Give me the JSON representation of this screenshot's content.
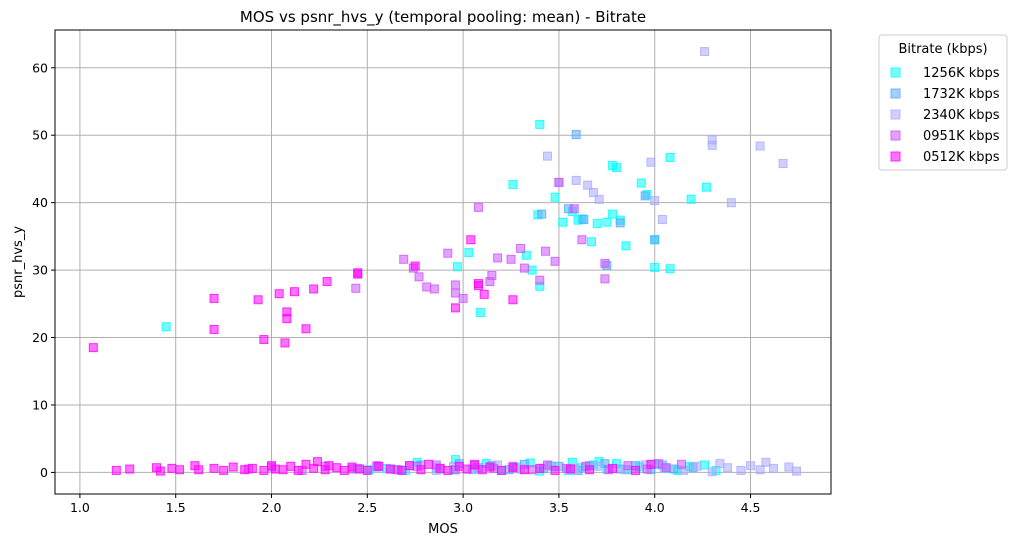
{
  "chart_data": {
    "type": "scatter",
    "title": "MOS vs psnr_hvs_y (temporal pooling: mean) - Bitrate",
    "xlabel": "MOS",
    "ylabel": "psnr_hvs_y",
    "xlim": [
      0.87,
      4.92
    ],
    "ylim": [
      -3.2,
      65.6
    ],
    "xticks": [
      1.0,
      1.5,
      2.0,
      2.5,
      3.0,
      3.5,
      4.0,
      4.5
    ],
    "xtick_labels": [
      "1.0",
      "1.5",
      "2.0",
      "2.5",
      "3.0",
      "3.5",
      "4.0",
      "4.5"
    ],
    "yticks": [
      0,
      10,
      20,
      30,
      40,
      50,
      60
    ],
    "ytick_labels": [
      "0",
      "10",
      "20",
      "30",
      "40",
      "50",
      "60"
    ],
    "grid": true,
    "marker": "square",
    "legend": {
      "title": "Bitrate (kbps)",
      "placement": "outside-top-right"
    },
    "series": [
      {
        "name": "1256K kbps",
        "color": "#00ffff",
        "points": [
          [
            1.45,
            21.6
          ],
          [
            2.97,
            30.5
          ],
          [
            3.03,
            32.6
          ],
          [
            3.09,
            23.7
          ],
          [
            3.26,
            42.7
          ],
          [
            3.33,
            32.2
          ],
          [
            3.36,
            30.0
          ],
          [
            3.39,
            38.2
          ],
          [
            3.4,
            27.6
          ],
          [
            3.4,
            51.6
          ],
          [
            3.48,
            40.8
          ],
          [
            3.52,
            37.1
          ],
          [
            3.57,
            38.7
          ],
          [
            3.6,
            37.4
          ],
          [
            3.62,
            37.6
          ],
          [
            3.67,
            34.2
          ],
          [
            3.7,
            36.9
          ],
          [
            3.75,
            37.1
          ],
          [
            3.78,
            45.5
          ],
          [
            3.78,
            38.3
          ],
          [
            3.8,
            45.2
          ],
          [
            3.82,
            37.4
          ],
          [
            3.85,
            33.6
          ],
          [
            3.93,
            42.9
          ],
          [
            3.96,
            41.2
          ],
          [
            4.0,
            30.4
          ],
          [
            4.0,
            34.5
          ],
          [
            4.08,
            30.2
          ],
          [
            4.08,
            46.7
          ],
          [
            4.19,
            40.5
          ],
          [
            4.27,
            42.3
          ],
          [
            2.51,
            0.4
          ],
          [
            2.6,
            0.6
          ],
          [
            2.7,
            0.3
          ],
          [
            2.76,
            1.5
          ],
          [
            2.86,
            0.7
          ],
          [
            2.95,
            0.4
          ],
          [
            2.96,
            1.9
          ],
          [
            3.05,
            0.5
          ],
          [
            3.12,
            1.3
          ],
          [
            3.2,
            0.3
          ],
          [
            3.28,
            0.8
          ],
          [
            3.35,
            1.4
          ],
          [
            3.4,
            0.2
          ],
          [
            3.46,
            0.9
          ],
          [
            3.55,
            0.3
          ],
          [
            3.57,
            1.5
          ],
          [
            3.62,
            0.7
          ],
          [
            3.68,
            1.1
          ],
          [
            3.71,
            1.6
          ],
          [
            3.75,
            0.5
          ],
          [
            3.8,
            1.3
          ],
          [
            3.86,
            0.4
          ],
          [
            3.92,
            0.8
          ],
          [
            4.0,
            1.2
          ],
          [
            4.06,
            0.6
          ],
          [
            4.12,
            0.3
          ],
          [
            4.18,
            0.9
          ],
          [
            4.26,
            1.1
          ],
          [
            4.32,
            0.3
          ]
        ]
      },
      {
        "name": "1732K kbps",
        "color": "#55aaff",
        "points": [
          [
            3.41,
            38.3
          ],
          [
            3.59,
            50.1
          ],
          [
            3.63,
            37.5
          ],
          [
            3.75,
            30.7
          ],
          [
            3.82,
            37.0
          ],
          [
            4.0,
            34.5
          ],
          [
            3.55,
            39.1
          ],
          [
            3.95,
            41.0
          ],
          [
            2.45,
            0.6
          ],
          [
            2.55,
            0.8
          ],
          [
            2.65,
            0.4
          ],
          [
            2.78,
            1.1
          ],
          [
            2.88,
            0.5
          ],
          [
            2.98,
            1.3
          ],
          [
            3.08,
            0.7
          ],
          [
            3.15,
            1.0
          ],
          [
            3.24,
            0.4
          ],
          [
            3.32,
            1.2
          ],
          [
            3.42,
            0.6
          ],
          [
            3.5,
            0.9
          ],
          [
            3.6,
            0.3
          ],
          [
            3.66,
            1.0
          ],
          [
            3.74,
            1.3
          ],
          [
            3.82,
            0.5
          ],
          [
            3.9,
            1.0
          ],
          [
            3.98,
            0.4
          ],
          [
            4.04,
            1.1
          ],
          [
            4.1,
            0.5
          ],
          [
            4.2,
            0.7
          ]
        ]
      },
      {
        "name": "2340K kbps",
        "color": "#aaaaff",
        "points": [
          [
            3.44,
            46.9
          ],
          [
            3.5,
            43.0
          ],
          [
            3.59,
            43.3
          ],
          [
            3.65,
            42.6
          ],
          [
            3.68,
            41.5
          ],
          [
            3.71,
            40.5
          ],
          [
            3.98,
            46.0
          ],
          [
            4.0,
            40.3
          ],
          [
            4.04,
            37.5
          ],
          [
            4.26,
            62.4
          ],
          [
            4.3,
            49.3
          ],
          [
            4.3,
            48.5
          ],
          [
            4.4,
            40.0
          ],
          [
            4.55,
            48.4
          ],
          [
            4.67,
            45.8
          ],
          [
            2.62,
            0.5
          ],
          [
            2.72,
            1.0
          ],
          [
            2.86,
            0.3
          ],
          [
            2.95,
            0.9
          ],
          [
            3.05,
            0.4
          ],
          [
            3.18,
            1.1
          ],
          [
            3.3,
            0.5
          ],
          [
            3.45,
            1.0
          ],
          [
            3.58,
            0.6
          ],
          [
            3.7,
            0.9
          ],
          [
            3.85,
            0.4
          ],
          [
            3.95,
            1.1
          ],
          [
            4.05,
            0.7
          ],
          [
            4.15,
            0.3
          ],
          [
            4.22,
            0.9
          ],
          [
            4.3,
            0.1
          ],
          [
            4.34,
            1.3
          ],
          [
            4.38,
            0.7
          ],
          [
            4.45,
            0.3
          ],
          [
            4.5,
            1.0
          ],
          [
            4.55,
            0.4
          ],
          [
            4.58,
            1.5
          ],
          [
            4.62,
            0.6
          ],
          [
            4.7,
            0.8
          ],
          [
            4.74,
            0.2
          ]
        ]
      },
      {
        "name": "0951K kbps",
        "color": "#cc55ff",
        "points": [
          [
            2.44,
            27.3
          ],
          [
            2.69,
            31.6
          ],
          [
            2.74,
            30.3
          ],
          [
            2.77,
            29.0
          ],
          [
            2.81,
            27.5
          ],
          [
            2.85,
            27.2
          ],
          [
            2.92,
            32.5
          ],
          [
            2.96,
            27.8
          ],
          [
            2.96,
            26.6
          ],
          [
            3.0,
            25.8
          ],
          [
            3.08,
            39.3
          ],
          [
            3.14,
            28.3
          ],
          [
            3.15,
            29.2
          ],
          [
            3.18,
            31.8
          ],
          [
            3.25,
            31.6
          ],
          [
            3.3,
            33.2
          ],
          [
            3.32,
            30.3
          ],
          [
            3.4,
            28.5
          ],
          [
            3.43,
            32.8
          ],
          [
            3.48,
            31.3
          ],
          [
            3.5,
            43.0
          ],
          [
            3.58,
            39.1
          ],
          [
            3.62,
            34.5
          ],
          [
            3.74,
            31.0
          ],
          [
            3.74,
            28.7
          ],
          [
            1.88,
            0.5
          ],
          [
            2.0,
            0.8
          ],
          [
            2.16,
            0.3
          ],
          [
            2.28,
            0.9
          ],
          [
            2.42,
            0.5
          ],
          [
            2.55,
            1.0
          ],
          [
            2.66,
            0.4
          ],
          [
            2.76,
            0.9
          ],
          [
            2.86,
            1.1
          ],
          [
            2.96,
            0.4
          ],
          [
            3.06,
            1.2
          ],
          [
            3.16,
            0.6
          ],
          [
            3.26,
            0.9
          ],
          [
            3.36,
            0.4
          ],
          [
            3.44,
            1.1
          ],
          [
            3.54,
            0.6
          ],
          [
            3.64,
            0.9
          ],
          [
            3.76,
            0.4
          ],
          [
            3.86,
            1.0
          ],
          [
            3.96,
            0.5
          ],
          [
            4.02,
            1.3
          ],
          [
            4.06,
            0.7
          ],
          [
            4.14,
            1.2
          ]
        ]
      },
      {
        "name": "0512K kbps",
        "color": "#ff00ff",
        "points": [
          [
            1.07,
            18.5
          ],
          [
            1.7,
            25.8
          ],
          [
            1.7,
            21.2
          ],
          [
            1.93,
            25.6
          ],
          [
            1.96,
            19.7
          ],
          [
            2.04,
            26.5
          ],
          [
            2.07,
            19.2
          ],
          [
            2.08,
            23.8
          ],
          [
            2.08,
            22.8
          ],
          [
            2.12,
            26.8
          ],
          [
            2.18,
            21.3
          ],
          [
            2.22,
            27.2
          ],
          [
            2.29,
            28.3
          ],
          [
            2.45,
            29.6
          ],
          [
            2.45,
            29.4
          ],
          [
            2.75,
            30.6
          ],
          [
            2.96,
            24.4
          ],
          [
            3.04,
            34.5
          ],
          [
            3.08,
            28.0
          ],
          [
            3.08,
            27.7
          ],
          [
            3.11,
            26.4
          ],
          [
            3.26,
            25.6
          ],
          [
            1.19,
            0.3
          ],
          [
            1.26,
            0.5
          ],
          [
            1.4,
            0.7
          ],
          [
            1.42,
            0.2
          ],
          [
            1.48,
            0.6
          ],
          [
            1.52,
            0.4
          ],
          [
            1.6,
            1.0
          ],
          [
            1.62,
            0.4
          ],
          [
            1.7,
            0.6
          ],
          [
            1.75,
            0.3
          ],
          [
            1.8,
            0.8
          ],
          [
            1.86,
            0.4
          ],
          [
            1.9,
            0.6
          ],
          [
            1.96,
            0.3
          ],
          [
            2.0,
            1.0
          ],
          [
            2.02,
            0.5
          ],
          [
            2.06,
            0.4
          ],
          [
            2.1,
            0.9
          ],
          [
            2.14,
            0.3
          ],
          [
            2.18,
            1.2
          ],
          [
            2.22,
            0.6
          ],
          [
            2.24,
            1.6
          ],
          [
            2.28,
            0.4
          ],
          [
            2.3,
            1.0
          ],
          [
            2.34,
            0.7
          ],
          [
            2.38,
            0.3
          ],
          [
            2.42,
            0.8
          ],
          [
            2.46,
            0.5
          ],
          [
            2.5,
            0.3
          ],
          [
            2.56,
            0.9
          ],
          [
            2.62,
            0.5
          ],
          [
            2.68,
            0.3
          ],
          [
            2.72,
            1.0
          ],
          [
            2.78,
            0.4
          ],
          [
            2.82,
            1.2
          ],
          [
            2.88,
            0.6
          ],
          [
            2.92,
            0.3
          ],
          [
            2.98,
            0.9
          ],
          [
            3.02,
            0.5
          ],
          [
            3.06,
            1.1
          ],
          [
            3.1,
            0.4
          ],
          [
            3.14,
            0.8
          ],
          [
            3.2,
            0.3
          ],
          [
            3.26,
            0.7
          ],
          [
            3.32,
            0.4
          ],
          [
            3.4,
            0.6
          ],
          [
            3.48,
            0.3
          ],
          [
            3.56,
            0.5
          ],
          [
            3.66,
            0.4
          ],
          [
            3.78,
            0.6
          ],
          [
            3.9,
            0.3
          ],
          [
            3.98,
            1.2
          ]
        ]
      }
    ]
  }
}
